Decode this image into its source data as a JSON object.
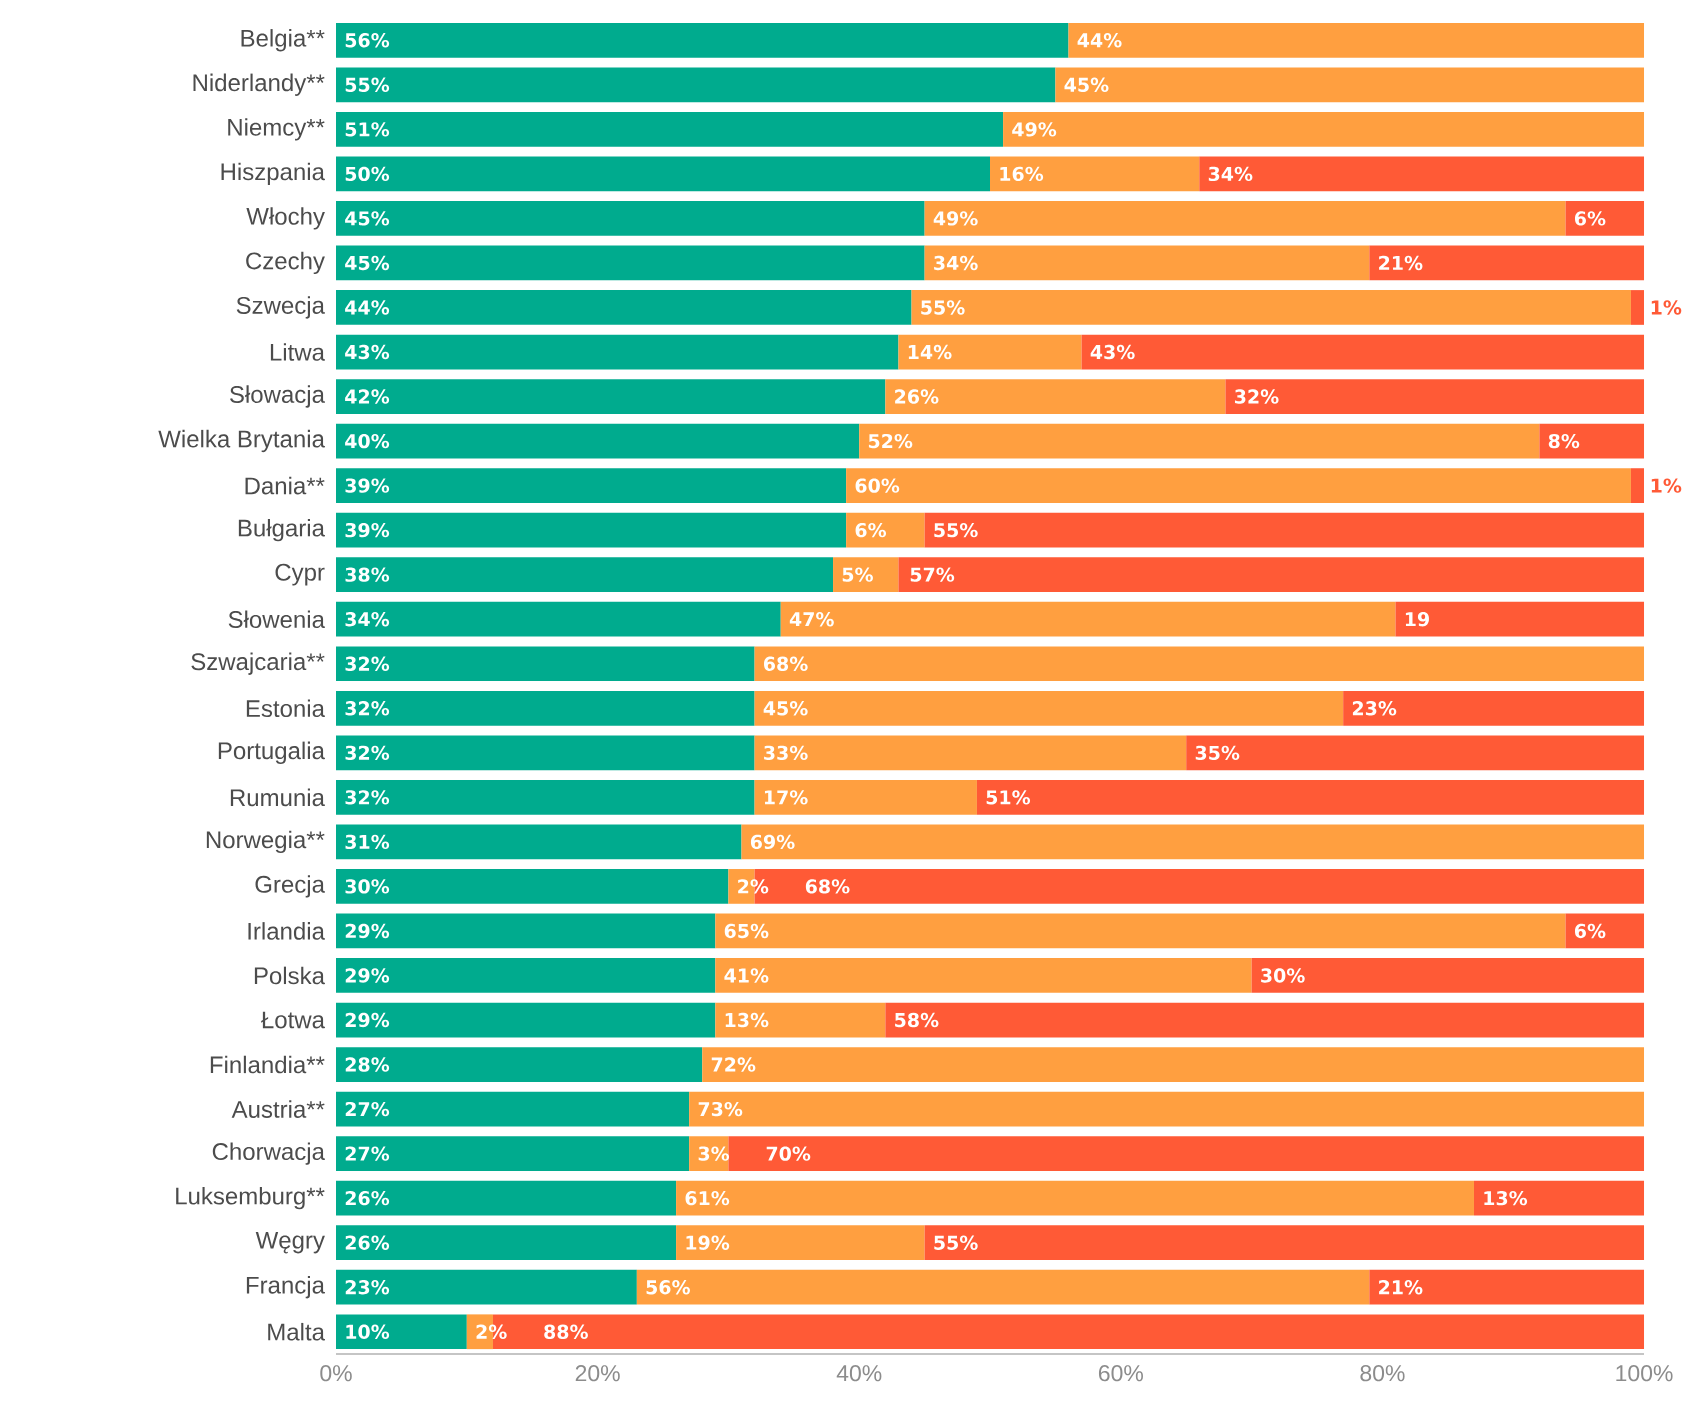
{
  "chart_data": {
    "type": "bar",
    "orientation": "horizontal",
    "stacked": true,
    "categories": [
      "Belgia**",
      "Niderlandy**",
      "Niemcy**",
      "Hiszpania",
      "Włochy",
      "Czechy",
      "Szwecja",
      "Litwa",
      "Słowacja",
      "Wielka Brytania",
      "Dania**",
      "Bułgaria",
      "Cypr",
      "Słowenia",
      "Szwajcaria**",
      "Estonia",
      "Portugalia",
      "Rumunia",
      "Norwegia**",
      "Grecja",
      "Irlandia",
      "Polska",
      "Łotwa",
      "Finlandia**",
      "Austria**",
      "Chorwacja",
      "Luksemburg**",
      "Węgry",
      "Francja",
      "Malta"
    ],
    "series": [
      {
        "color": "#00ab8e",
        "values": [
          56,
          55,
          51,
          50,
          45,
          45,
          44,
          43,
          42,
          40,
          39,
          39,
          38,
          34,
          32,
          32,
          32,
          32,
          31,
          30,
          29,
          29,
          29,
          28,
          27,
          27,
          26,
          26,
          23,
          10
        ],
        "value_labels": [
          "56%",
          "55%",
          "51%",
          "50%",
          "45%",
          "45%",
          "44%",
          "43%",
          "42%",
          "40%",
          "39%",
          "39%",
          "38%",
          "34%",
          "32%",
          "32%",
          "32%",
          "32%",
          "31%",
          "30%",
          "29%",
          "29%",
          "29%",
          "28%",
          "27%",
          "27%",
          "26%",
          "26%",
          "23%",
          "10%"
        ]
      },
      {
        "color": "#ff9f40",
        "values": [
          44,
          45,
          49,
          16,
          49,
          34,
          55,
          14,
          26,
          52,
          60,
          6,
          5,
          47,
          68,
          45,
          33,
          17,
          69,
          2,
          65,
          41,
          13,
          72,
          73,
          3,
          61,
          19,
          56,
          2
        ],
        "value_labels": [
          "44%",
          "45%",
          "49%",
          "16%",
          "49%",
          "34%",
          "55%",
          "14%",
          "26%",
          "52%",
          "60%",
          "6%",
          "5%",
          "47%",
          "68%",
          "45%",
          "33%",
          "17%",
          "69%",
          "2%",
          "65%",
          "41%",
          "13%",
          "72%",
          "73%",
          "3%",
          "61%",
          "19%",
          "56%",
          "2%"
        ]
      },
      {
        "color": "#ff5a36",
        "values": [
          null,
          null,
          null,
          34,
          6,
          21,
          1,
          43,
          32,
          8,
          1,
          55,
          57,
          19,
          null,
          23,
          35,
          51,
          null,
          68,
          6,
          30,
          58,
          null,
          null,
          70,
          13,
          55,
          21,
          88
        ],
        "value_labels": [
          null,
          null,
          null,
          "34%",
          "6%",
          "21%",
          "1%",
          "43%",
          "32%",
          "8%",
          "1%",
          "55%",
          "57%",
          "19",
          null,
          "23%",
          "35%",
          "51%",
          null,
          "68%",
          "6%",
          "30%",
          "58%",
          null,
          null,
          "70%",
          "13%",
          "55%",
          "21%",
          "88%"
        ]
      }
    ],
    "xlim": [
      0,
      100
    ],
    "xticks": [
      {
        "value": 0,
        "label": "0%"
      },
      {
        "value": 20,
        "label": "20%"
      },
      {
        "value": 40,
        "label": "40%"
      },
      {
        "value": 60,
        "label": "60%"
      },
      {
        "value": 80,
        "label": "80%"
      },
      {
        "value": 100,
        "label": "100%"
      }
    ]
  }
}
